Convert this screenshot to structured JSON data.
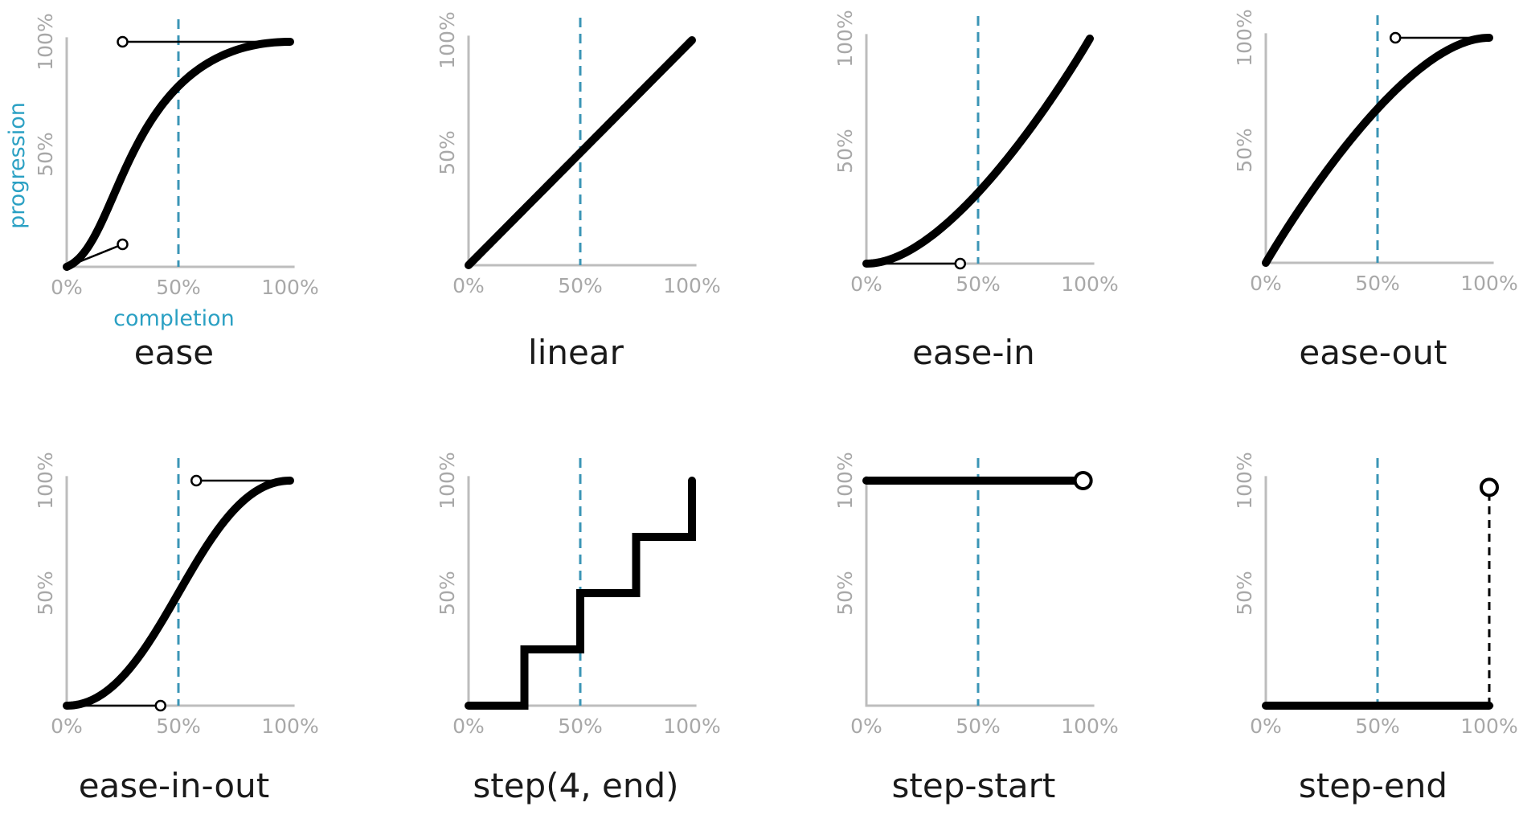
{
  "axes": {
    "x_title": "completion",
    "y_title": "progression",
    "x_ticks": [
      "0%",
      "50%",
      "100%"
    ],
    "y_ticks": [
      "50%",
      "100%"
    ]
  },
  "colors": {
    "curve": "#000000",
    "guide": "#3b95b6",
    "axis_title": "#2aa0c3",
    "tick": "#a8a8a8",
    "axis_line": "#bdbdbd"
  },
  "panels": [
    {
      "id": "ease",
      "label": "ease",
      "kind": "bezier",
      "p1": [
        0.25,
        0.1
      ],
      "p2": [
        0.25,
        1.0
      ]
    },
    {
      "id": "linear",
      "label": "linear",
      "kind": "bezier",
      "p1": [
        0.0,
        0.0
      ],
      "p2": [
        1.0,
        1.0
      ],
      "hide_handles": true
    },
    {
      "id": "ease-in",
      "label": "ease-in",
      "kind": "bezier",
      "p1": [
        0.42,
        0.0
      ],
      "p2": [
        1.0,
        1.0
      ],
      "show_p2": false
    },
    {
      "id": "ease-out",
      "label": "ease-out",
      "kind": "bezier",
      "p1": [
        0.0,
        0.0
      ],
      "p2": [
        0.58,
        1.0
      ],
      "show_p1": false
    },
    {
      "id": "ease-in-out",
      "label": "ease-in-out",
      "kind": "bezier",
      "p1": [
        0.42,
        0.0
      ],
      "p2": [
        0.58,
        1.0
      ]
    },
    {
      "id": "step-4-end",
      "label": "step(4,  end)",
      "kind": "steps",
      "steps": 4,
      "position": "end"
    },
    {
      "id": "step-start",
      "label": "step-start",
      "kind": "step-start"
    },
    {
      "id": "step-end",
      "label": "step-end",
      "kind": "step-end"
    }
  ]
}
